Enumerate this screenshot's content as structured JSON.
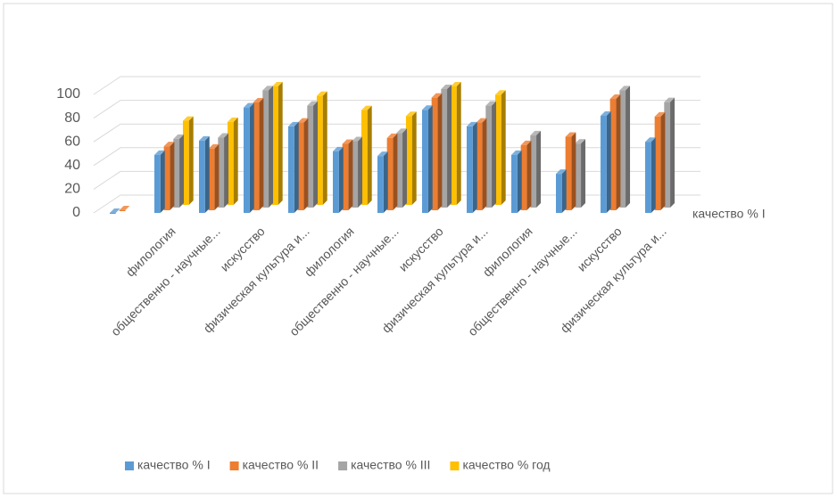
{
  "chart_data": {
    "type": "bar3d",
    "categories": [
      null,
      "филология",
      "общественно - научные...",
      "искусство",
      "физическая культура и...",
      "филология",
      "общественно - научные...",
      "искусство",
      "физическая культура и...",
      "филология",
      "общественно - научные...",
      "искусство",
      "физическая культура и..."
    ],
    "series": [
      {
        "name": "качество % I",
        "color": "#5b9bd5",
        "values": [
          0,
          49,
          61,
          89,
          73,
          52,
          48,
          87,
          73,
          49,
          33,
          82,
          60
        ]
      },
      {
        "name": "качество % II",
        "color": "#ed7d31",
        "values": [
          0,
          54,
          52,
          91,
          74,
          56,
          61,
          95,
          74,
          55,
          62,
          94,
          79
        ]
      },
      {
        "name": "качество % III",
        "color": "#a5a5a5",
        "values": [
          null,
          58,
          59,
          99,
          86,
          56,
          63,
          100,
          86,
          61,
          54,
          99,
          89
        ]
      },
      {
        "name": "качество % год",
        "color": "#ffc000",
        "values": [
          null,
          71,
          70,
          100,
          92,
          80,
          75,
          100,
          93,
          null,
          null,
          null,
          null
        ]
      }
    ],
    "depth_axis_label": "качество % I",
    "ylim": [
      0,
      100
    ],
    "yticks": [
      0,
      20,
      40,
      60,
      80,
      100
    ],
    "grid": true,
    "legend": "bottom"
  }
}
